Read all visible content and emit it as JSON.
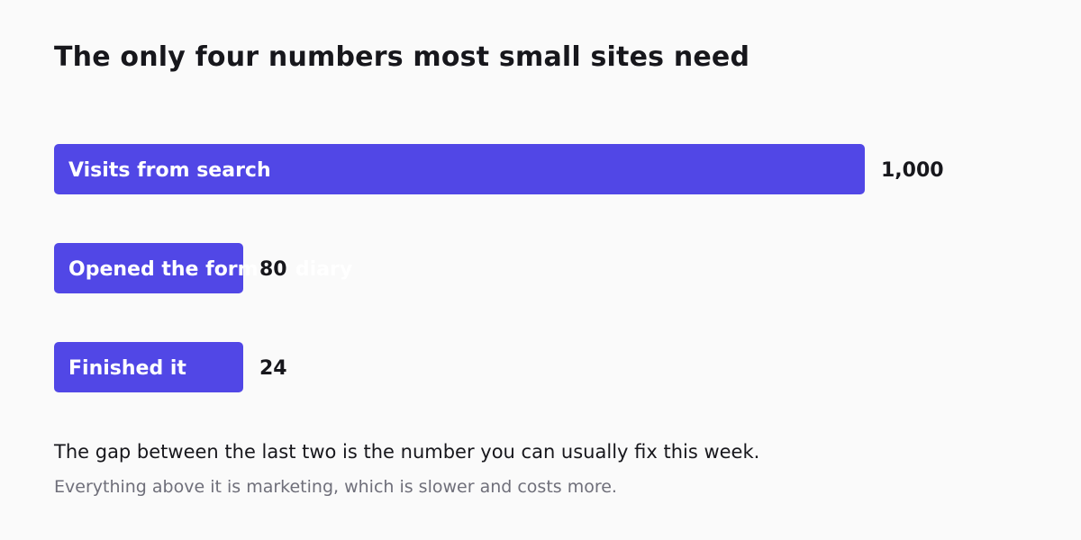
{
  "colors": {
    "background": "#fafafa",
    "bar": "#5147e6",
    "text": "#17171c",
    "muted": "#6f6f7a"
  },
  "chart_data": {
    "type": "bar",
    "orientation": "horizontal",
    "title": "The only four numbers most small sites need",
    "categories": [
      "Visits from search",
      "Opened the form or diary",
      "Finished it"
    ],
    "values": [
      1000,
      80,
      24
    ],
    "value_labels": [
      "1,000",
      "80",
      "24"
    ],
    "grid": false,
    "legend": "none"
  },
  "footer": {
    "note": "The gap between the last two is the number you can usually fix this week.",
    "subnote": "Everything above it is marketing, which is slower and costs more."
  }
}
